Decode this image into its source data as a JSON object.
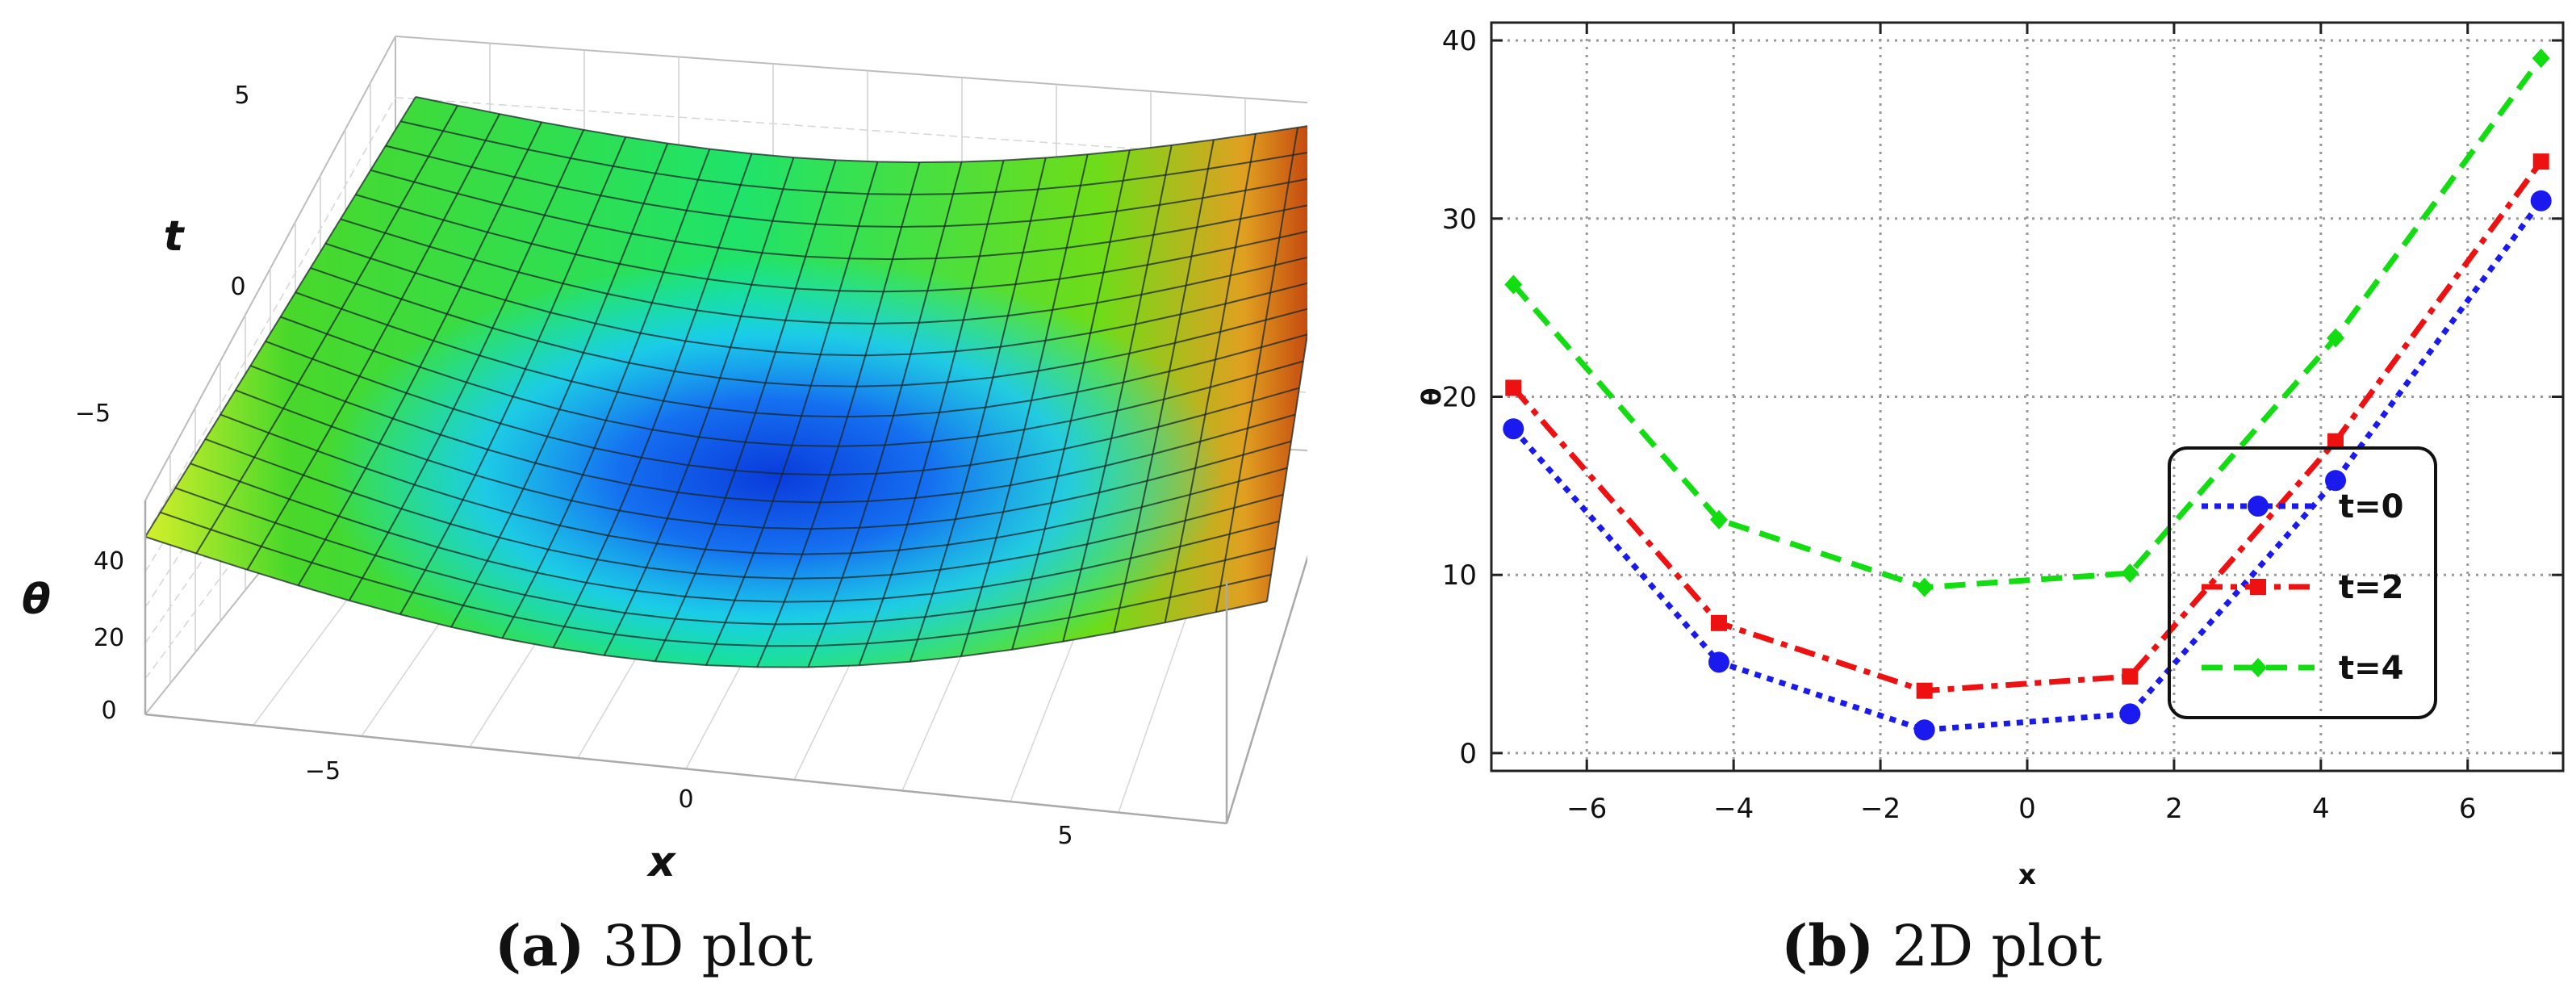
{
  "chart_data": [
    {
      "type": "surface3d",
      "panel": "a",
      "axes": {
        "x": {
          "label": "x",
          "ticks": [
            "−5",
            "0",
            "5"
          ],
          "range": [
            -7,
            7
          ]
        },
        "t": {
          "label": "t",
          "ticks": [
            "5",
            "0",
            "−5"
          ],
          "range": [
            -7,
            7
          ]
        },
        "theta": {
          "label": "θ",
          "ticks": [
            "40",
            "20",
            "0"
          ],
          "range": [
            0,
            50
          ]
        }
      },
      "colormap": [
        "#0a3bdc",
        "#19b4ff",
        "#00e6ff",
        "#1fe36a",
        "#7cdd10",
        "#e7f03a",
        "#e0a020",
        "#b81f08"
      ],
      "grid": true
    },
    {
      "type": "line",
      "panel": "b",
      "xlabel": "x",
      "ylabel": "θ",
      "xlim": [
        -7.3,
        7.3
      ],
      "ylim": [
        -1,
        41
      ],
      "xticks": [
        -6,
        -4,
        -2,
        0,
        2,
        4,
        6
      ],
      "xtick_labels": [
        "−6",
        "−4",
        "−2",
        "0",
        "2",
        "4",
        "6"
      ],
      "yticks": [
        0,
        10,
        20,
        30,
        40
      ],
      "ytick_labels": [
        "0",
        "10",
        "20",
        "30",
        "40"
      ],
      "grid": true,
      "legend_position": "right",
      "x": [
        -7,
        -4.2,
        -1.4,
        1.4,
        4.2,
        7
      ],
      "series": [
        {
          "name": "t=0",
          "color": "#1a1aee",
          "dash": "dotted",
          "marker": "circle",
          "values": [
            18.2,
            5.1,
            1.3,
            2.2,
            15.3,
            31.0
          ]
        },
        {
          "name": "t=2",
          "color": "#ee1111",
          "dash": "dashdot",
          "marker": "square",
          "values": [
            20.5,
            7.3,
            3.5,
            4.3,
            17.5,
            33.2
          ]
        },
        {
          "name": "t=4",
          "color": "#11dd11",
          "dash": "dashed",
          "marker": "diamond",
          "values": [
            26.3,
            13.1,
            9.3,
            10.1,
            23.3,
            39.0
          ]
        }
      ]
    }
  ],
  "captions": {
    "a": {
      "tag": "(a)",
      "text": " 3D plot"
    },
    "b": {
      "tag": "(b)",
      "text": " 2D plot"
    }
  }
}
